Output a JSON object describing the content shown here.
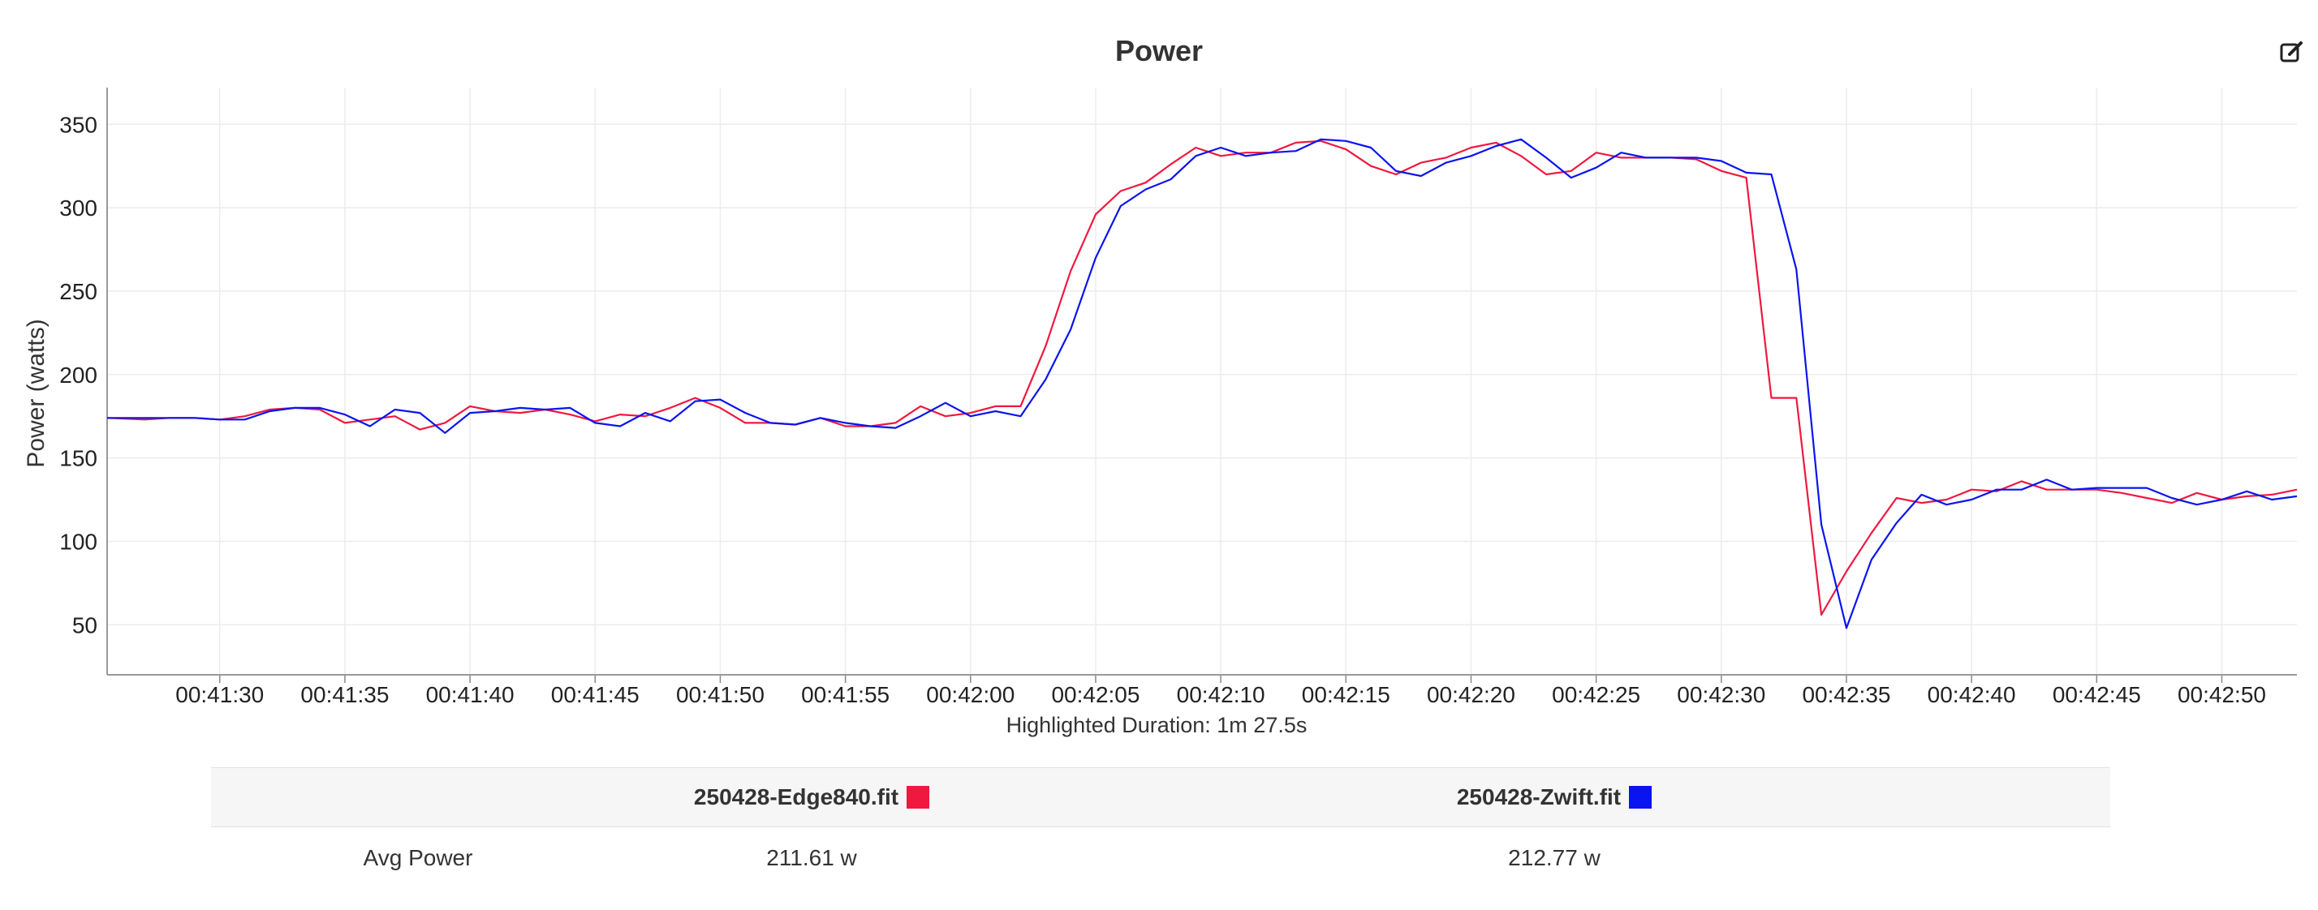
{
  "chart_data": {
    "type": "line",
    "title": "Power",
    "ylabel": "Power (watts)",
    "xlabel": "Highlighted Duration: 1m 27.5s",
    "x_start": "00:41:25.5",
    "x_end": "00:42:53",
    "ylim": [
      20,
      372
    ],
    "yticks": [
      50,
      100,
      150,
      200,
      250,
      300,
      350
    ],
    "xticks": [
      "00:41:30",
      "00:41:35",
      "00:41:40",
      "00:41:45",
      "00:41:50",
      "00:41:55",
      "00:42:00",
      "00:42:05",
      "00:42:10",
      "00:42:15",
      "00:42:20",
      "00:42:25",
      "00:42:30",
      "00:42:35",
      "00:42:40",
      "00:42:45",
      "00:42:50"
    ],
    "grid": true,
    "legend": "table-below",
    "series": [
      {
        "name": "250428-Edge840.fit",
        "color": "#f0183f",
        "points": [
          [
            "00:41:25.5",
            174
          ],
          [
            "00:41:27",
            173
          ],
          [
            "00:41:28",
            174
          ],
          [
            "00:41:29",
            174
          ],
          [
            "00:41:30",
            173
          ],
          [
            "00:41:31",
            175
          ],
          [
            "00:41:32",
            179
          ],
          [
            "00:41:33",
            180
          ],
          [
            "00:41:34",
            179
          ],
          [
            "00:41:35",
            171
          ],
          [
            "00:41:36",
            173
          ],
          [
            "00:41:37",
            175
          ],
          [
            "00:41:38",
            167
          ],
          [
            "00:41:39",
            171
          ],
          [
            "00:41:40",
            181
          ],
          [
            "00:41:41",
            178
          ],
          [
            "00:41:42",
            177
          ],
          [
            "00:41:43",
            179
          ],
          [
            "00:41:44",
            176
          ],
          [
            "00:41:45",
            172
          ],
          [
            "00:41:46",
            176
          ],
          [
            "00:41:47",
            175
          ],
          [
            "00:41:48",
            180
          ],
          [
            "00:41:49",
            186
          ],
          [
            "00:41:50",
            180
          ],
          [
            "00:41:51",
            171
          ],
          [
            "00:41:52",
            171
          ],
          [
            "00:41:53",
            170
          ],
          [
            "00:41:54",
            174
          ],
          [
            "00:41:55",
            169
          ],
          [
            "00:41:56",
            169
          ],
          [
            "00:41:57",
            171
          ],
          [
            "00:41:58",
            181
          ],
          [
            "00:41:59",
            175
          ],
          [
            "00:42:00",
            177
          ],
          [
            "00:42:01",
            181
          ],
          [
            "00:42:02",
            181
          ],
          [
            "00:42:03",
            217
          ],
          [
            "00:42:04",
            262
          ],
          [
            "00:42:05",
            296
          ],
          [
            "00:42:06",
            310
          ],
          [
            "00:42:07",
            315
          ],
          [
            "00:42:08",
            326
          ],
          [
            "00:42:09",
            336
          ],
          [
            "00:42:10",
            331
          ],
          [
            "00:42:11",
            333
          ],
          [
            "00:42:12",
            333
          ],
          [
            "00:42:13",
            339
          ],
          [
            "00:42:14",
            340
          ],
          [
            "00:42:15",
            335
          ],
          [
            "00:42:16",
            325
          ],
          [
            "00:42:17",
            320
          ],
          [
            "00:42:18",
            327
          ],
          [
            "00:42:19",
            330
          ],
          [
            "00:42:20",
            336
          ],
          [
            "00:42:21",
            339
          ],
          [
            "00:42:22",
            331
          ],
          [
            "00:42:23",
            320
          ],
          [
            "00:42:24",
            322
          ],
          [
            "00:42:25",
            333
          ],
          [
            "00:42:26",
            330
          ],
          [
            "00:42:27",
            330
          ],
          [
            "00:42:28",
            330
          ],
          [
            "00:42:29",
            329
          ],
          [
            "00:42:30",
            322
          ],
          [
            "00:42:31",
            318
          ],
          [
            "00:42:32",
            186
          ],
          [
            "00:42:33",
            186
          ],
          [
            "00:42:34",
            56
          ],
          [
            "00:42:35",
            82
          ],
          [
            "00:42:36",
            105
          ],
          [
            "00:42:37",
            126
          ],
          [
            "00:42:38",
            123
          ],
          [
            "00:42:39",
            125
          ],
          [
            "00:42:40",
            131
          ],
          [
            "00:42:41",
            130
          ],
          [
            "00:42:42",
            136
          ],
          [
            "00:42:43",
            131
          ],
          [
            "00:42:44",
            131
          ],
          [
            "00:42:45",
            131
          ],
          [
            "00:42:46",
            129
          ],
          [
            "00:42:47",
            126
          ],
          [
            "00:42:48",
            123
          ],
          [
            "00:42:49",
            129
          ],
          [
            "00:42:50",
            125
          ],
          [
            "00:42:51",
            127
          ],
          [
            "00:42:52",
            128
          ],
          [
            "00:42:53",
            131
          ]
        ]
      },
      {
        "name": "250428-Zwift.fit",
        "color": "#0a14f0",
        "points": [
          [
            "00:41:25.5",
            174
          ],
          [
            "00:41:27",
            174
          ],
          [
            "00:41:28",
            174
          ],
          [
            "00:41:29",
            174
          ],
          [
            "00:41:30",
            173
          ],
          [
            "00:41:31",
            173
          ],
          [
            "00:41:32",
            178
          ],
          [
            "00:41:33",
            180
          ],
          [
            "00:41:34",
            180
          ],
          [
            "00:41:35",
            176
          ],
          [
            "00:41:36",
            169
          ],
          [
            "00:41:37",
            179
          ],
          [
            "00:41:38",
            177
          ],
          [
            "00:41:39",
            165
          ],
          [
            "00:41:40",
            177
          ],
          [
            "00:41:41",
            178
          ],
          [
            "00:41:42",
            180
          ],
          [
            "00:41:43",
            179
          ],
          [
            "00:41:44",
            180
          ],
          [
            "00:41:45",
            171
          ],
          [
            "00:41:46",
            169
          ],
          [
            "00:41:47",
            177
          ],
          [
            "00:41:48",
            172
          ],
          [
            "00:41:49",
            184
          ],
          [
            "00:41:50",
            185
          ],
          [
            "00:41:51",
            177
          ],
          [
            "00:41:52",
            171
          ],
          [
            "00:41:53",
            170
          ],
          [
            "00:41:54",
            174
          ],
          [
            "00:41:55",
            171
          ],
          [
            "00:41:56",
            169
          ],
          [
            "00:41:57",
            168
          ],
          [
            "00:41:58",
            175
          ],
          [
            "00:41:59",
            183
          ],
          [
            "00:42:00",
            175
          ],
          [
            "00:42:01",
            178
          ],
          [
            "00:42:02",
            175
          ],
          [
            "00:42:03",
            197
          ],
          [
            "00:42:04",
            227
          ],
          [
            "00:42:05",
            270
          ],
          [
            "00:42:06",
            301
          ],
          [
            "00:42:07",
            311
          ],
          [
            "00:42:08",
            317
          ],
          [
            "00:42:09",
            331
          ],
          [
            "00:42:10",
            336
          ],
          [
            "00:42:11",
            331
          ],
          [
            "00:42:12",
            333
          ],
          [
            "00:42:13",
            334
          ],
          [
            "00:42:14",
            341
          ],
          [
            "00:42:15",
            340
          ],
          [
            "00:42:16",
            336
          ],
          [
            "00:42:17",
            322
          ],
          [
            "00:42:18",
            319
          ],
          [
            "00:42:19",
            327
          ],
          [
            "00:42:20",
            331
          ],
          [
            "00:42:21",
            337
          ],
          [
            "00:42:22",
            341
          ],
          [
            "00:42:23",
            330
          ],
          [
            "00:42:24",
            318
          ],
          [
            "00:42:25",
            324
          ],
          [
            "00:42:26",
            333
          ],
          [
            "00:42:27",
            330
          ],
          [
            "00:42:28",
            330
          ],
          [
            "00:42:29",
            330
          ],
          [
            "00:42:30",
            328
          ],
          [
            "00:42:31",
            321
          ],
          [
            "00:42:32",
            320
          ],
          [
            "00:42:33",
            263
          ],
          [
            "00:42:34",
            110
          ],
          [
            "00:42:35",
            48
          ],
          [
            "00:42:36",
            89
          ],
          [
            "00:42:37",
            111
          ],
          [
            "00:42:38",
            128
          ],
          [
            "00:42:39",
            122
          ],
          [
            "00:42:40",
            125
          ],
          [
            "00:42:41",
            131
          ],
          [
            "00:42:42",
            131
          ],
          [
            "00:42:43",
            137
          ],
          [
            "00:42:44",
            131
          ],
          [
            "00:42:45",
            132
          ],
          [
            "00:42:46",
            132
          ],
          [
            "00:42:47",
            132
          ],
          [
            "00:42:48",
            126
          ],
          [
            "00:42:49",
            122
          ],
          [
            "00:42:50",
            125
          ],
          [
            "00:42:51",
            130
          ],
          [
            "00:42:52",
            125
          ],
          [
            "00:42:53",
            127
          ]
        ]
      }
    ]
  },
  "summary": {
    "files": [
      {
        "name": "250428-Edge840.fit",
        "color": "#f0183f"
      },
      {
        "name": "250428-Zwift.fit",
        "color": "#0a14f0"
      }
    ],
    "rows": [
      {
        "label": "Avg Power",
        "values": [
          "211.61 w",
          "212.77 w"
        ]
      }
    ]
  },
  "icons": {
    "edit": "edit-icon"
  }
}
